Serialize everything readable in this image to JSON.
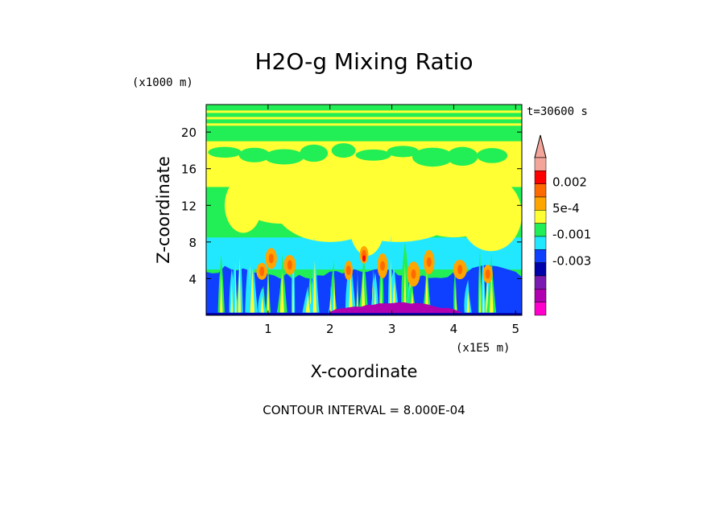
{
  "chart_data": {
    "type": "heatmap",
    "title": "H2O-g Mixing Ratio",
    "xlabel": "X-coordinate",
    "ylabel": "Z-coordinate",
    "x_unit": "(x1E5 m)",
    "y_unit": "(x1000 m)",
    "time_label": "t=30600 s",
    "footer": "CONTOUR INTERVAL = 8.000E-04",
    "xlim": [
      0,
      5.1
    ],
    "ylim": [
      0,
      23
    ],
    "x_ticks": [
      "1",
      "2",
      "3",
      "4",
      "5"
    ],
    "x_tick_values": [
      1,
      2,
      3,
      4,
      5
    ],
    "y_ticks": [
      "4",
      "8",
      "12",
      "16",
      "20"
    ],
    "y_tick_values": [
      4,
      8,
      12,
      16,
      20
    ],
    "colorbar": {
      "labels": [
        "0.002",
        "5e-4",
        "-0.001",
        "-0.003"
      ],
      "label_values": [
        0.002,
        0.0005,
        -0.001,
        -0.003
      ],
      "colors_top_to_bottom": [
        "#f4a59a",
        "#ff0000",
        "#ff6a00",
        "#ffa500",
        "#ffff33",
        "#22ee55",
        "#22e8ff",
        "#1040ff",
        "#0000aa",
        "#7a1ab0",
        "#b000b0",
        "#ff00cc"
      ],
      "extend": "max"
    },
    "layers": [
      {
        "name": "bottom-magenta",
        "z_range": [
          0,
          0.6
        ],
        "color": "#b000b0"
      },
      {
        "name": "lower-blue",
        "z_range": [
          0,
          5
        ],
        "color": "#1040ff"
      },
      {
        "name": "cyan-band",
        "z_range": [
          5,
          8.5
        ],
        "color": "#22e8ff"
      },
      {
        "name": "green-mid",
        "z_range": [
          8.5,
          14
        ],
        "color": "#22ee55"
      },
      {
        "name": "yellow-upper",
        "z_range": [
          14,
          19
        ],
        "color": "#ffff33"
      },
      {
        "name": "green-top",
        "z_range": [
          19,
          23
        ],
        "color": "#22ee55"
      }
    ]
  }
}
